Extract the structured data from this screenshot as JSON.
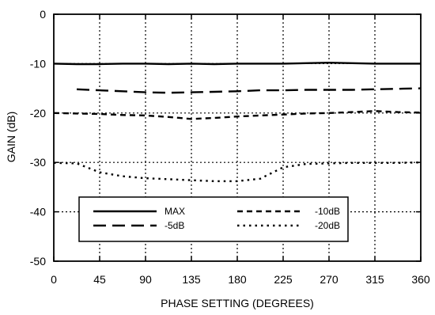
{
  "chart_data": {
    "type": "line",
    "title": "",
    "xlabel": "PHASE SETTING (DEGREES)",
    "ylabel": "GAIN (dB)",
    "xlim": [
      0,
      360
    ],
    "ylim": [
      -50,
      0
    ],
    "xticks": [
      0,
      45,
      90,
      135,
      180,
      225,
      270,
      315,
      360
    ],
    "yticks": [
      0,
      -10,
      -20,
      -30,
      -40,
      -50
    ],
    "xtick_labels": [
      "0",
      "45",
      "90",
      "135",
      "180",
      "225",
      "270",
      "315",
      "360"
    ],
    "ytick_labels": [
      "0",
      "-10",
      "-20",
      "-30",
      "-40",
      "-50"
    ],
    "grid": true,
    "legend_position": "bottom-center",
    "x": [
      0,
      22.5,
      45,
      67.5,
      90,
      112.5,
      135,
      157.5,
      180,
      202.5,
      225,
      247.5,
      270,
      292.5,
      315,
      337.5,
      360
    ],
    "series": [
      {
        "name": "MAX",
        "style": "solid",
        "color": "#000000",
        "values": [
          -10.0,
          -10.1,
          -10.1,
          -10.0,
          -10.0,
          -10.1,
          -10.0,
          -10.1,
          -10.0,
          -10.0,
          -10.0,
          -9.9,
          -9.8,
          -9.9,
          -10.0,
          -10.0,
          -10.0
        ]
      },
      {
        "name": "-5dB",
        "style": "long-dash",
        "color": "#000000",
        "values": [
          null,
          -15.2,
          -15.4,
          -15.6,
          -15.8,
          -15.9,
          -15.8,
          -15.7,
          -15.6,
          -15.4,
          -15.4,
          -15.3,
          -15.3,
          -15.3,
          -15.2,
          -15.1,
          -15.0
        ]
      },
      {
        "name": "-10dB",
        "style": "short-dash",
        "color": "#000000",
        "values": [
          -20.0,
          -20.1,
          -20.2,
          -20.4,
          -20.5,
          -20.8,
          -21.2,
          -21.0,
          -20.7,
          -20.5,
          -20.3,
          -20.1,
          -20.0,
          -19.8,
          -19.6,
          -19.8,
          -19.9
        ]
      },
      {
        "name": "-20dB",
        "style": "dotted",
        "color": "#000000",
        "values": [
          -30.1,
          -30.2,
          -32.0,
          -32.8,
          -33.2,
          -33.4,
          -33.6,
          -33.8,
          -33.8,
          -33.3,
          -31.0,
          -30.3,
          -30.2,
          -30.1,
          -30.1,
          -30.1,
          -30.0
        ]
      }
    ],
    "legend": {
      "entries": [
        "MAX",
        "-10dB",
        "-5dB",
        "-20dB"
      ]
    }
  }
}
